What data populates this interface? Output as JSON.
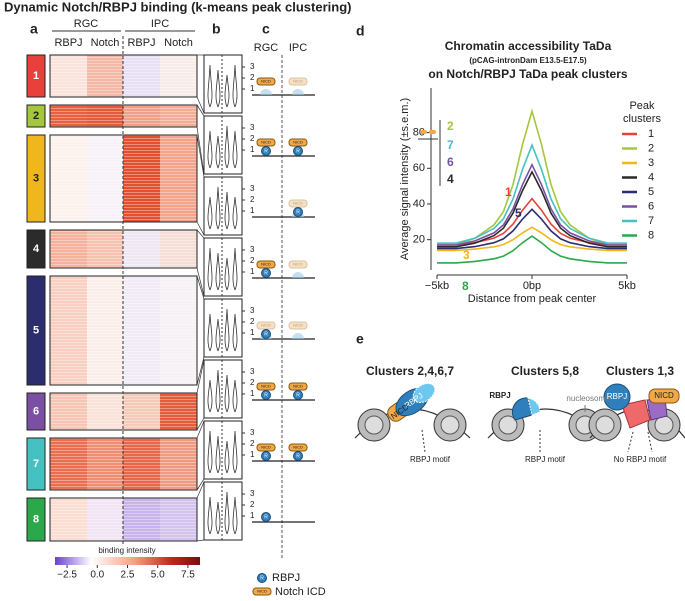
{
  "title": "Dynamic Notch/RBPJ binding (k-means peak clustering)",
  "panel_a": {
    "letter": "a",
    "groups": [
      "RGC",
      "IPC"
    ],
    "columns": [
      "RBPJ",
      "Notch",
      "RBPJ",
      "Notch"
    ],
    "clusters": [
      {
        "label": "1",
        "color": "#e8413c",
        "heat": [
          "#fbe3dc",
          "#f4b9a6",
          "#e8e0f4",
          "#f8ece8"
        ]
      },
      {
        "label": "2",
        "color": "#a5c73b",
        "heat": [
          "#e8603f",
          "#e45b3c",
          "#f0a088",
          "#f3ad96"
        ]
      },
      {
        "label": "3",
        "color": "#f0b71c",
        "heat": [
          "#fdf1ec",
          "#f6f2f7",
          "#e2512f",
          "#f3a48b"
        ]
      },
      {
        "label": "4",
        "color": "#2b2b2b",
        "heat": [
          "#f5b19b",
          "#f6c1af",
          "#efe6f3",
          "#f5ded5"
        ]
      },
      {
        "label": "5",
        "color": "#2b2d6e",
        "heat": [
          "#f9cfc1",
          "#fbeee9",
          "#f1ebf6",
          "#f6f1f5"
        ]
      },
      {
        "label": "6",
        "color": "#7b4fa3",
        "heat": [
          "#f6c5b4",
          "#fae2d8",
          "#f4cab9",
          "#e35c3c"
        ]
      },
      {
        "label": "7",
        "color": "#45c1c1",
        "heat": [
          "#ea6e4f",
          "#ef8e73",
          "#e8674a",
          "#f09b81"
        ]
      },
      {
        "label": "8",
        "color": "#2aa84a",
        "heat": [
          "#fbddd2",
          "#f2e4f5",
          "#c8b4ea",
          "#d3c3ee"
        ]
      }
    ],
    "colorbar": {
      "label": "binding intensity",
      "lim": [
        -3.5,
        8.5
      ],
      "ticks": [
        {
          "value": -2.5,
          "label": "−2.5"
        },
        {
          "value": 0,
          "label": "0.0"
        },
        {
          "value": 2.5,
          "label": "2.5"
        },
        {
          "value": 5,
          "label": "5.0"
        },
        {
          "value": 7.5,
          "label": "7.5"
        }
      ]
    }
  },
  "panel_b": {
    "letter": "b",
    "yticks": [
      1,
      2,
      3
    ]
  },
  "panel_c": {
    "letter": "c",
    "columns": [
      "RGC",
      "IPC"
    ],
    "icon_r": "R",
    "icon_nicd": "NICD",
    "legend": [
      "RBPJ",
      "Notch ICD"
    ]
  },
  "chart_data": {
    "type": "line",
    "panel_letter": "d",
    "title": [
      "Chromatin accessibility TaDa",
      "(pCAG-intronDam E13.5-E17.5)",
      "on Notch/RBPJ TaDa peak clusters"
    ],
    "y_label": "Average signal intensity (±s.e.m.)",
    "x_label": "Distance from peak center",
    "legend_title": [
      "Peak",
      "clusters"
    ],
    "x": [
      -5000,
      -4000,
      -3000,
      -2000,
      -1500,
      -1000,
      -500,
      0,
      500,
      1000,
      1500,
      2000,
      3000,
      4000,
      5000
    ],
    "xlim": [
      -5000,
      5000
    ],
    "xticks": [
      {
        "value": -5000,
        "label": "−5kb"
      },
      {
        "value": 0,
        "label": "0bp"
      },
      {
        "value": 5000,
        "label": "5kb"
      }
    ],
    "ylim": [
      3,
      105
    ],
    "yticks": [
      20,
      40,
      60,
      80
    ],
    "series": [
      {
        "name": "1",
        "color": "#e8413c",
        "values": [
          17,
          17,
          18.3,
          20.9,
          23.5,
          28.7,
          36.5,
          43,
          36.5,
          28.7,
          23.5,
          20.9,
          18.3,
          17,
          17
        ]
      },
      {
        "name": "2",
        "color": "#a5c73b",
        "values": [
          17,
          17,
          20.8,
          28.3,
          35.8,
          50.8,
          73.3,
          92,
          73.3,
          50.8,
          35.8,
          28.3,
          20.8,
          17,
          17
        ]
      },
      {
        "name": "3",
        "color": "#f0b71c",
        "values": [
          14,
          14,
          14.7,
          16,
          17.3,
          19.9,
          23.8,
          27,
          23.8,
          19.9,
          17.3,
          16,
          14.7,
          14,
          14
        ]
      },
      {
        "name": "4",
        "color": "#2b2b2b",
        "values": [
          16,
          16,
          18.1,
          22.3,
          26.5,
          34.9,
          47.5,
          58,
          47.5,
          34.9,
          26.5,
          22.3,
          18.1,
          16,
          16
        ]
      },
      {
        "name": "5",
        "color": "#2b2d6e",
        "values": [
          15,
          15,
          16.1,
          18.3,
          20.5,
          24.9,
          31.5,
          37,
          31.5,
          24.9,
          20.5,
          18.3,
          16.1,
          15,
          15
        ]
      },
      {
        "name": "6",
        "color": "#7b4fa3",
        "values": [
          17,
          17,
          19.3,
          23.8,
          28.3,
          37.3,
          50.8,
          62,
          50.8,
          37.3,
          28.3,
          23.8,
          19.3,
          17,
          17
        ]
      },
      {
        "name": "7",
        "color": "#45c1c1",
        "values": [
          18,
          18,
          20.8,
          26.3,
          31.8,
          42.8,
          59.3,
          73,
          59.3,
          42.8,
          31.8,
          26.3,
          20.8,
          18,
          18
        ]
      },
      {
        "name": "8",
        "color": "#2aa84a",
        "values": [
          7,
          7,
          7.8,
          9.3,
          10.8,
          13.8,
          18.3,
          22,
          18.3,
          13.8,
          10.8,
          9.3,
          7.8,
          7,
          7
        ]
      }
    ]
  },
  "panel_e": {
    "letter": "e",
    "schemes": [
      {
        "title": "Clusters 2,4,6,7",
        "labels": [
          "RBPJ",
          "NICD",
          "RBPJ motif"
        ]
      },
      {
        "title": "Clusters 5,8",
        "labels": [
          "RBPJ",
          "nucleosome",
          "RBPJ motif"
        ]
      },
      {
        "title": "Clusters 1,3",
        "labels": [
          "RBPJ",
          "NICD",
          "No RBPJ motif"
        ]
      }
    ]
  }
}
